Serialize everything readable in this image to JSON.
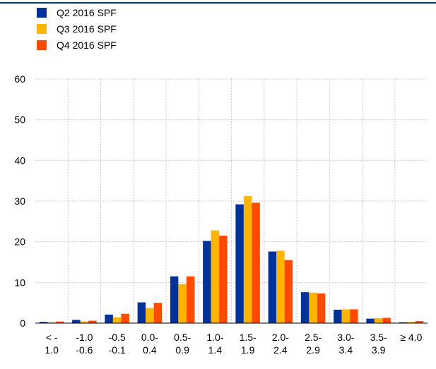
{
  "chart_data": {
    "type": "bar",
    "categories": [
      [
        "<  -",
        "1.0"
      ],
      [
        "-1.0",
        "-0.6"
      ],
      [
        "-0.5",
        "-0.1"
      ],
      [
        "0.0-",
        "0.4"
      ],
      [
        "0.5-",
        "0.9"
      ],
      [
        "1.0-",
        "1.4"
      ],
      [
        "1.5-",
        "1.9"
      ],
      [
        "2.0-",
        "2.4"
      ],
      [
        "2.5-",
        "2.9"
      ],
      [
        "3.0-",
        "3.4"
      ],
      [
        "3.5-",
        "3.9"
      ],
      [
        "≥ 4.0"
      ]
    ],
    "series": [
      {
        "name": "Q2 2016 SPF",
        "color": "#003299",
        "values": [
          0.3,
          0.8,
          2.1,
          5.1,
          11.5,
          20.2,
          29.2,
          17.6,
          7.6,
          3.3,
          1.1,
          0.2
        ]
      },
      {
        "name": "Q3 2016 SPF",
        "color": "#ffb400",
        "values": [
          0.2,
          0.4,
          1.4,
          3.7,
          9.6,
          22.8,
          31.2,
          17.8,
          7.5,
          3.4,
          1.2,
          0.3
        ]
      },
      {
        "name": "Q4 2016 SPF",
        "color": "#ff4b00",
        "values": [
          0.4,
          0.6,
          2.3,
          5.0,
          11.5,
          21.5,
          29.6,
          15.5,
          7.3,
          3.4,
          1.3,
          0.5
        ]
      }
    ],
    "ylim": [
      0,
      60
    ],
    "yticks": [
      0,
      10,
      20,
      30,
      40,
      50,
      60
    ],
    "grid": true,
    "legend": "top-left"
  }
}
